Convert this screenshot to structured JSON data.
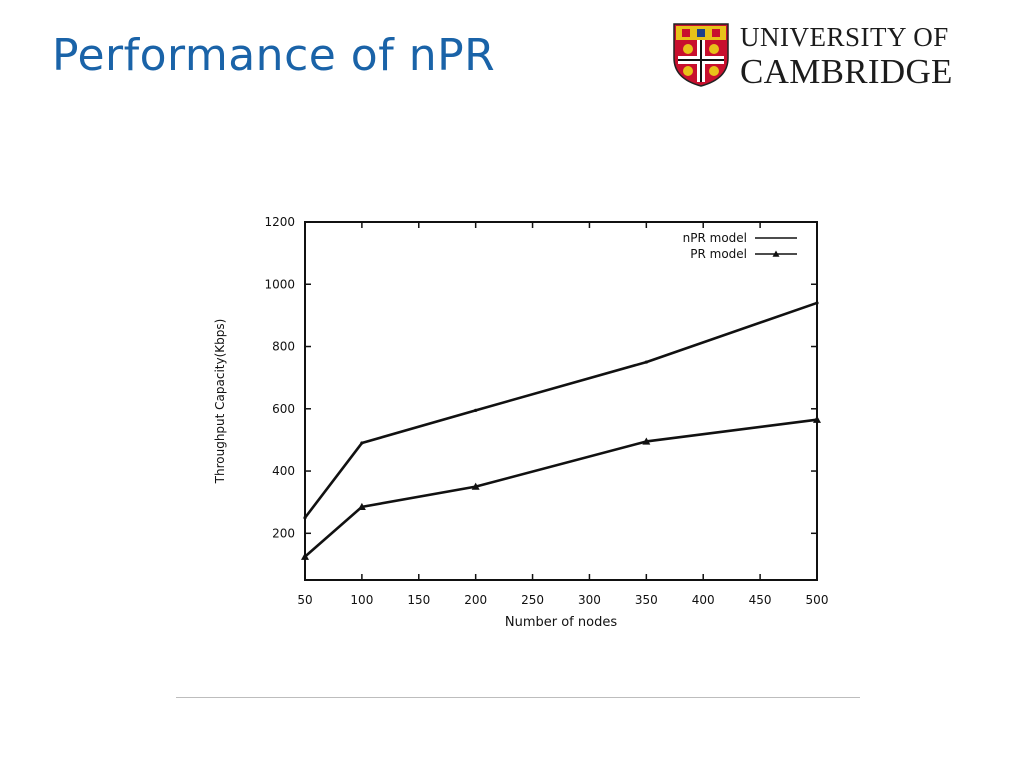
{
  "slide": {
    "title": "Performance of nPR"
  },
  "logo": {
    "line1": "UNIVERSITY OF",
    "line2": "CAMBRIDGE",
    "colors": {
      "red": "#c8102e",
      "gold": "#e8c21a",
      "white": "#ffffff",
      "black": "#111111"
    }
  },
  "chart_data": {
    "type": "line",
    "title": "",
    "xlabel": "Number of nodes",
    "ylabel": "Throughput Capacity(Kbps)",
    "xlim": [
      50,
      500
    ],
    "ylim": [
      50,
      1200
    ],
    "x_ticks": [
      50,
      100,
      150,
      200,
      250,
      300,
      350,
      400,
      450,
      500
    ],
    "y_ticks": [
      200,
      400,
      600,
      800,
      1000,
      1200
    ],
    "grid": false,
    "legend_position": "top-right",
    "series": [
      {
        "name": "nPR model",
        "marker": "none",
        "x": [
          50,
          100,
          200,
          350,
          500
        ],
        "y": [
          250,
          490,
          595,
          750,
          940
        ]
      },
      {
        "name": "PR model",
        "marker": "triangle",
        "x": [
          50,
          100,
          200,
          350,
          500
        ],
        "y": [
          125,
          285,
          350,
          495,
          565
        ]
      }
    ]
  }
}
